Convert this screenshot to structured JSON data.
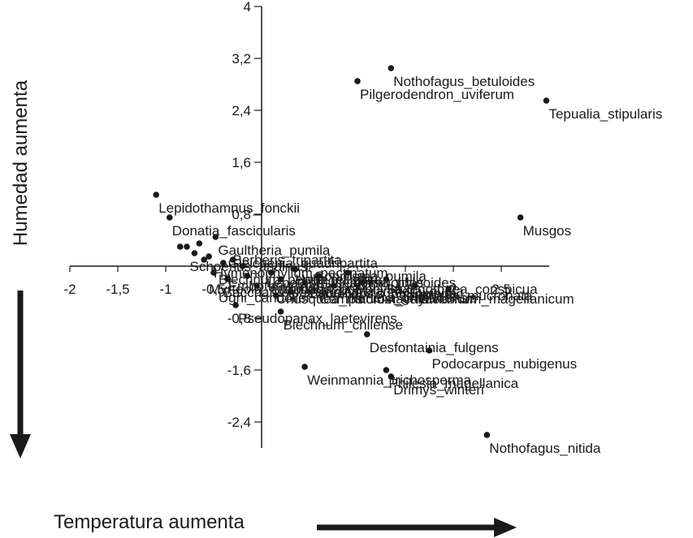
{
  "chart_data": {
    "type": "scatter",
    "title": "",
    "xlabel": "Temperatura aumenta",
    "ylabel": "Humedad aumenta",
    "xlim": [
      -2.0,
      3.0
    ],
    "ylim": [
      -2.8,
      4.0
    ],
    "x_ticks": [
      -2,
      -1.5,
      -1,
      -0.5,
      0.5,
      1,
      1.5,
      2,
      2.5
    ],
    "x_tick_labels": [
      "-2",
      "-1,5",
      "-1",
      "-0,5",
      "0,5",
      "1",
      "1,5",
      "2",
      "2,5"
    ],
    "y_ticks": [
      4,
      3.2,
      2.4,
      1.6,
      0.8,
      -0.8,
      -1.6,
      -2.4
    ],
    "y_tick_labels": [
      "4",
      "3,2",
      "2,4",
      "1,6",
      "0,8",
      "-0,8",
      "-1,6",
      "-2,4"
    ],
    "grid": false,
    "legend": "none",
    "point_color": "#1a1a1a",
    "points": [
      {
        "label": "Nothofagus_betuloides",
        "x": 1.35,
        "y": 3.05
      },
      {
        "label": "Pilgerodendron_uviferum",
        "x": 1.0,
        "y": 2.85
      },
      {
        "label": "Tepualia_stipularis",
        "x": 2.97,
        "y": 2.55
      },
      {
        "label": "Lepidothamnus_fonckii",
        "x": -1.1,
        "y": 1.1
      },
      {
        "label": "Donatia_fascicularis",
        "x": -0.96,
        "y": 0.75
      },
      {
        "label": "Musgos",
        "x": 2.7,
        "y": 0.75
      },
      {
        "label": "Gaultheria_pumila",
        "x": -0.48,
        "y": 0.45
      },
      {
        "label": "",
        "x": -0.85,
        "y": 0.3
      },
      {
        "label": "",
        "x": -0.78,
        "y": 0.3
      },
      {
        "label": "",
        "x": -0.65,
        "y": 0.35
      },
      {
        "label": "",
        "x": -0.7,
        "y": 0.2
      },
      {
        "label": "",
        "x": -0.6,
        "y": 0.1
      },
      {
        "label": "",
        "x": -0.55,
        "y": 0.15
      },
      {
        "label": "",
        "x": -0.4,
        "y": 0.05
      },
      {
        "label": "",
        "x": -0.3,
        "y": 0.1
      },
      {
        "label": "",
        "x": -0.2,
        "y": 0.0
      },
      {
        "label": "",
        "x": -0.5,
        "y": -0.1
      },
      {
        "label": "",
        "x": -0.35,
        "y": -0.2
      },
      {
        "label": "",
        "x": -0.15,
        "y": -0.15
      },
      {
        "label": "",
        "x": -0.05,
        "y": -0.3
      },
      {
        "label": "",
        "x": 0.1,
        "y": -0.1
      },
      {
        "label": "",
        "x": 0.2,
        "y": -0.2
      },
      {
        "label": "",
        "x": 0.35,
        "y": -0.05
      },
      {
        "label": "",
        "x": 0.45,
        "y": -0.25
      },
      {
        "label": "",
        "x": 0.6,
        "y": -0.15
      },
      {
        "label": "",
        "x": 0.75,
        "y": -0.3
      },
      {
        "label": "",
        "x": 0.9,
        "y": -0.1
      },
      {
        "label": "",
        "x": 1.05,
        "y": -0.25
      },
      {
        "label": "",
        "x": 1.3,
        "y": -0.2
      },
      {
        "label": "",
        "x": 1.6,
        "y": -0.3
      },
      {
        "label": "",
        "x": 1.95,
        "y": -0.35
      },
      {
        "label": "",
        "x": 0.15,
        "y": -0.45
      },
      {
        "label": "",
        "x": 0.3,
        "y": -0.4
      },
      {
        "label": "Pseudopanax_laetevirens",
        "x": -0.27,
        "y": -0.6
      },
      {
        "label": "Blechnum_chilense",
        "x": 0.2,
        "y": -0.7
      },
      {
        "label": "Desfontainia_fulgens",
        "x": 1.1,
        "y": -1.05
      },
      {
        "label": "Podocarpus_nubigenus",
        "x": 1.75,
        "y": -1.3
      },
      {
        "label": "Weinmannia_trichosperma",
        "x": 0.45,
        "y": -1.55
      },
      {
        "label": "Philesia_magellanica",
        "x": 1.3,
        "y": -1.6
      },
      {
        "label": "Drimys_winteri",
        "x": 1.35,
        "y": -1.7
      },
      {
        "label": "Nothofagus_nitida",
        "x": 2.35,
        "y": -2.6
      }
    ],
    "cluster_labels": [
      {
        "text": "Berberis_tripartita",
        "x": -0.3,
        "y": 0.1
      },
      {
        "text": "Gleichenia_quadripartita",
        "x": -0.35,
        "y": 0.05
      },
      {
        "text": "Schoenus_andinus",
        "x": -0.75,
        "y": 0.0
      },
      {
        "text": "Hymenophyllum_pectinatum",
        "x": -0.5,
        "y": -0.1
      },
      {
        "text": "Blechnum_penna-marina",
        "x": -0.45,
        "y": -0.2
      },
      {
        "text": "Embothrium_coccineum",
        "x": -0.35,
        "y": -0.3
      },
      {
        "text": "Myrteola_nummularia",
        "x": -0.55,
        "y": -0.35
      },
      {
        "text": "Lebetanthus_myrsinoides",
        "x": 0.05,
        "y": -0.25
      },
      {
        "text": "Baccharis_patagonica",
        "x": -0.4,
        "y": -0.4
      },
      {
        "text": "Luzuriaga_polyphylla",
        "x": 0.1,
        "y": -0.35
      },
      {
        "text": "Ugni_candollei",
        "x": -0.45,
        "y": -0.48
      },
      {
        "text": "Coprosma_pumila",
        "x": 0.55,
        "y": -0.15
      },
      {
        "text": "Chusquea_macrostachya",
        "x": 0.15,
        "y": -0.5
      },
      {
        "text": "Laureliopsis_philippiana",
        "x": 0.5,
        "y": -0.42
      },
      {
        "text": "Uncinia_phleoides",
        "x": 0.85,
        "y": -0.25
      },
      {
        "text": "Asteranthera_ovata",
        "x": 0.85,
        "y": -0.38
      },
      {
        "text": "Saxegothaea_conspicua",
        "x": 1.3,
        "y": -0.35
      },
      {
        "text": "Hebe_elliptica",
        "x": 0.35,
        "y": -0.2
      },
      {
        "text": "Campsidium_valdivianum",
        "x": 0.6,
        "y": -0.5
      },
      {
        "text": "Gaultheria_mucronata",
        "x": 1.4,
        "y": -0.45
      },
      {
        "text": "Nertera_granadensis",
        "x": 0.9,
        "y": -0.48
      },
      {
        "text": "Blechnum_magellanicum",
        "x": 1.65,
        "y": -0.5
      }
    ],
    "annotations": [
      {
        "text": "Temperatura aumenta",
        "direction": "right-arrow"
      },
      {
        "text": "Humedad aumenta",
        "direction": "down-arrow"
      }
    ]
  }
}
